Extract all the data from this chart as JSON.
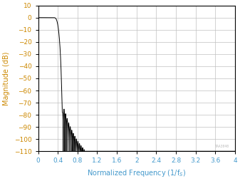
{
  "title": "",
  "xlabel": "Normalized Frequency (1/f$_S$)",
  "ylabel": "Magnitude (dB)",
  "xlim": [
    0,
    4
  ],
  "ylim": [
    -110,
    10
  ],
  "xticks": [
    0,
    0.4,
    0.8,
    1.2,
    1.6,
    2.0,
    2.4,
    2.8,
    3.2,
    3.6,
    4.0
  ],
  "yticks": [
    10,
    0,
    -10,
    -20,
    -30,
    -40,
    -50,
    -60,
    -70,
    -80,
    -90,
    -100,
    -110
  ],
  "line_color": "#000000",
  "tick_color_y": "#cc8800",
  "tick_color_x": "#4499cc",
  "grid_color": "#c0c0c0",
  "bg_color": "#ffffff",
  "watermark": "TAA3040",
  "figsize": [
    3.37,
    2.54
  ],
  "dpi": 100
}
